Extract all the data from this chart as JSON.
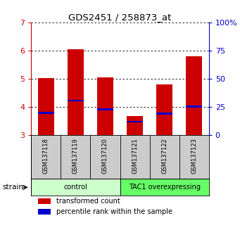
{
  "title": "GDS2451 / 258873_at",
  "samples": [
    "GSM137118",
    "GSM137119",
    "GSM137120",
    "GSM137121",
    "GSM137122",
    "GSM137123"
  ],
  "bar_tops": [
    5.02,
    6.05,
    5.04,
    3.67,
    4.79,
    5.8
  ],
  "bar_bottoms": [
    3.0,
    3.0,
    3.0,
    3.0,
    3.0,
    3.0
  ],
  "blue_markers": [
    3.78,
    4.22,
    3.91,
    3.47,
    3.75,
    4.01
  ],
  "ylim": [
    3.0,
    7.0
  ],
  "yticks": [
    3,
    4,
    5,
    6,
    7
  ],
  "right_ytick_positions": [
    3,
    4,
    5,
    6,
    7
  ],
  "right_ytick_labels": [
    "0",
    "25",
    "50",
    "75",
    "100%"
  ],
  "bar_color": "#cc0000",
  "blue_color": "#0000cc",
  "bar_width": 0.55,
  "groups": [
    {
      "label": "control",
      "indices": [
        0,
        1,
        2
      ],
      "color": "#ccffcc"
    },
    {
      "label": "TAC1 overexpressing",
      "indices": [
        3,
        4,
        5
      ],
      "color": "#66ff66"
    }
  ],
  "legend_red": "transformed count",
  "legend_blue": "percentile rank within the sample",
  "strain_label": "strain",
  "background_color": "#ffffff",
  "plot_bg": "#ffffff",
  "tick_label_color_left": "#cc0000",
  "tick_label_color_right": "#0000cc",
  "label_bg": "#cccccc"
}
